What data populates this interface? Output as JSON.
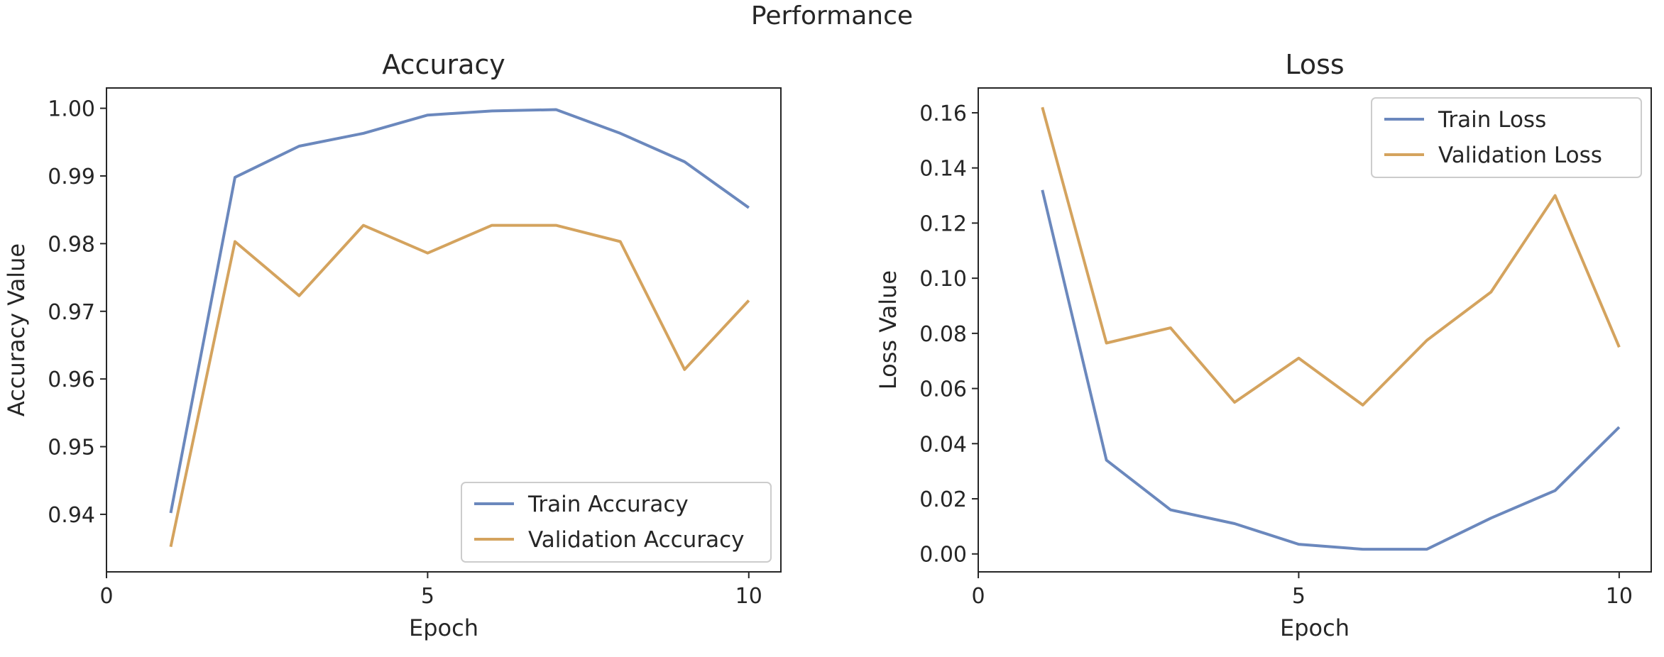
{
  "figure": {
    "title": "Performance"
  },
  "colors": {
    "train": "#6b88bd",
    "validation": "#d4a35e"
  },
  "chart_data": [
    {
      "type": "line",
      "title": "Accuracy",
      "xlabel": "Epoch",
      "ylabel": "Accuracy Value",
      "xlim": [
        0,
        10.5
      ],
      "ylim": [
        0.9315,
        1.003
      ],
      "xticks": [
        0,
        5,
        10
      ],
      "yticks": [
        0.94,
        0.95,
        0.96,
        0.97,
        0.98,
        0.99,
        1.0
      ],
      "ytick_labels": [
        "0.94",
        "0.95",
        "0.96",
        "0.97",
        "0.98",
        "0.99",
        "1.00"
      ],
      "grid": false,
      "legend": "lower-right",
      "x": [
        1,
        2,
        3,
        4,
        5,
        6,
        7,
        8,
        9,
        10
      ],
      "series": [
        {
          "name": "Train Accuracy",
          "color_key": "train",
          "values": [
            0.9402,
            0.9898,
            0.9944,
            0.9963,
            0.999,
            0.9996,
            0.9998,
            0.9963,
            0.9921,
            0.9853
          ]
        },
        {
          "name": "Validation Accuracy",
          "color_key": "validation",
          "values": [
            0.9352,
            0.9803,
            0.9723,
            0.9827,
            0.9786,
            0.9827,
            0.9827,
            0.9803,
            0.9614,
            0.9716
          ]
        }
      ]
    },
    {
      "type": "line",
      "title": "Loss",
      "xlabel": "Epoch",
      "ylabel": "Loss Value",
      "xlim": [
        0,
        10.5
      ],
      "ylim": [
        -0.0065,
        0.169
      ],
      "xticks": [
        0,
        5,
        10
      ],
      "yticks": [
        0.0,
        0.02,
        0.04,
        0.06,
        0.08,
        0.1,
        0.12,
        0.14,
        0.16
      ],
      "ytick_labels": [
        "0.00",
        "0.02",
        "0.04",
        "0.06",
        "0.08",
        "0.10",
        "0.12",
        "0.14",
        "0.16"
      ],
      "grid": false,
      "legend": "upper-right",
      "x": [
        1,
        2,
        3,
        4,
        5,
        6,
        7,
        8,
        9,
        10
      ],
      "series": [
        {
          "name": "Train Loss",
          "color_key": "train",
          "values": [
            0.132,
            0.034,
            0.016,
            0.011,
            0.0035,
            0.0017,
            0.0017,
            0.013,
            0.023,
            0.046
          ]
        },
        {
          "name": "Validation Loss",
          "color_key": "validation",
          "values": [
            0.162,
            0.0765,
            0.082,
            0.055,
            0.071,
            0.054,
            0.0775,
            0.095,
            0.13,
            0.075
          ]
        }
      ]
    }
  ]
}
